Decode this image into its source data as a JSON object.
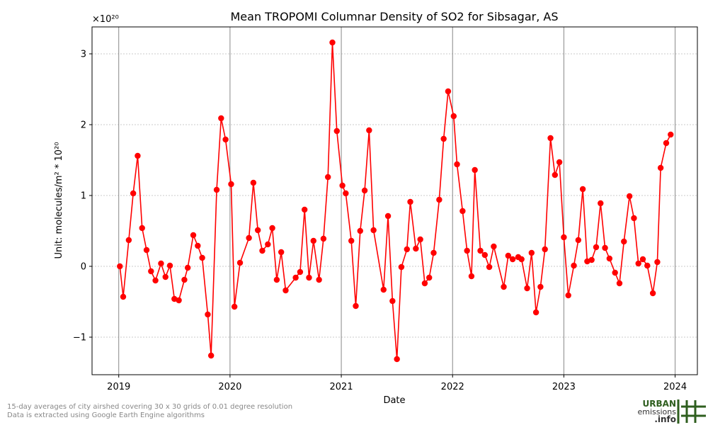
{
  "chart_data": {
    "type": "line",
    "title": "Mean TROPOMI Columnar Density of SO2 for Sibsagar, AS",
    "x_label": "Date",
    "y_label": "Unit: molecules/m² * 10²⁰",
    "y_scale_label": "×10²⁰",
    "xlim": [
      2018.76,
      2024.2
    ],
    "ylim": [
      -1.53,
      3.38
    ],
    "xticks": [
      2019,
      2020,
      2021,
      2022,
      2023,
      2024
    ],
    "yticks": [
      {
        "value": -1,
        "label": "−1"
      },
      0,
      1,
      2,
      3
    ],
    "grid": true,
    "color": "#ff0000",
    "x": [
      2019.01,
      2019.04,
      2019.09,
      2019.13,
      2019.17,
      2019.21,
      2019.25,
      2019.29,
      2019.33,
      2019.38,
      2019.42,
      2019.46,
      2019.5,
      2019.54,
      2019.59,
      2019.62,
      2019.67,
      2019.71,
      2019.75,
      2019.8,
      2019.83,
      2019.88,
      2019.92,
      2019.96,
      2020.01,
      2020.04,
      2020.09,
      2020.17,
      2020.21,
      2020.25,
      2020.29,
      2020.34,
      2020.38,
      2020.42,
      2020.46,
      2020.5,
      2020.59,
      2020.63,
      2020.67,
      2020.71,
      2020.75,
      2020.8,
      2020.84,
      2020.88,
      2020.92,
      2020.96,
      2021.01,
      2021.04,
      2021.09,
      2021.13,
      2021.17,
      2021.21,
      2021.25,
      2021.29,
      2021.38,
      2021.42,
      2021.46,
      2021.5,
      2021.54,
      2021.59,
      2021.62,
      2021.67,
      2021.71,
      2021.75,
      2021.79,
      2021.83,
      2021.88,
      2021.92,
      2021.96,
      2022.01,
      2022.04,
      2022.09,
      2022.13,
      2022.17,
      2022.2,
      2022.25,
      2022.29,
      2022.33,
      2022.37,
      2022.46,
      2022.5,
      2022.54,
      2022.59,
      2022.62,
      2022.67,
      2022.71,
      2022.75,
      2022.79,
      2022.83,
      2022.88,
      2022.92,
      2022.96,
      2023.0,
      2023.04,
      2023.09,
      2023.13,
      2023.17,
      2023.21,
      2023.25,
      2023.29,
      2023.33,
      2023.37,
      2023.41,
      2023.46,
      2023.5,
      2023.54,
      2023.59,
      2023.63,
      2023.67,
      2023.71,
      2023.75,
      2023.8,
      2023.84,
      2023.87,
      2023.92,
      2023.96
    ],
    "values": [
      0.0,
      -0.43,
      0.37,
      1.03,
      1.56,
      0.54,
      0.23,
      -0.07,
      -0.2,
      0.04,
      -0.15,
      0.01,
      -0.46,
      -0.48,
      -0.19,
      -0.02,
      0.44,
      0.29,
      0.12,
      -0.68,
      -1.26,
      1.08,
      2.09,
      1.79,
      1.16,
      -0.57,
      0.05,
      0.4,
      1.18,
      0.51,
      0.22,
      0.31,
      0.54,
      -0.19,
      0.2,
      -0.34,
      -0.16,
      -0.08,
      0.8,
      -0.16,
      0.36,
      -0.19,
      0.39,
      1.26,
      3.16,
      1.91,
      1.14,
      1.03,
      0.36,
      -0.56,
      0.5,
      1.07,
      1.92,
      0.51,
      -0.33,
      0.71,
      -0.49,
      -1.31,
      -0.01,
      0.24,
      0.91,
      0.25,
      0.38,
      -0.24,
      -0.16,
      0.19,
      0.94,
      1.8,
      2.47,
      2.12,
      1.44,
      0.78,
      0.22,
      -0.14,
      1.36,
      0.22,
      0.16,
      -0.01,
      0.28,
      -0.29,
      0.15,
      0.1,
      0.13,
      0.1,
      -0.31,
      0.19,
      -0.65,
      -0.29,
      0.24,
      1.81,
      1.29,
      1.47,
      0.41,
      -0.41,
      0.01,
      0.37,
      1.09,
      0.07,
      0.09,
      0.27,
      0.89,
      0.26,
      0.11,
      -0.09,
      -0.24,
      0.35,
      0.99,
      0.68,
      0.04,
      0.1,
      0.01,
      -0.38,
      0.06,
      1.39,
      1.74,
      1.86
    ]
  },
  "footnote": [
    "15-day averages of city airshed covering 30 x 30 grids of 0.01 degree resolution",
    "Data is extracted using Google Earth Engine algorithms"
  ],
  "logo": {
    "line1": "URBAN",
    "line2": "emissions",
    "line3": ".info"
  }
}
